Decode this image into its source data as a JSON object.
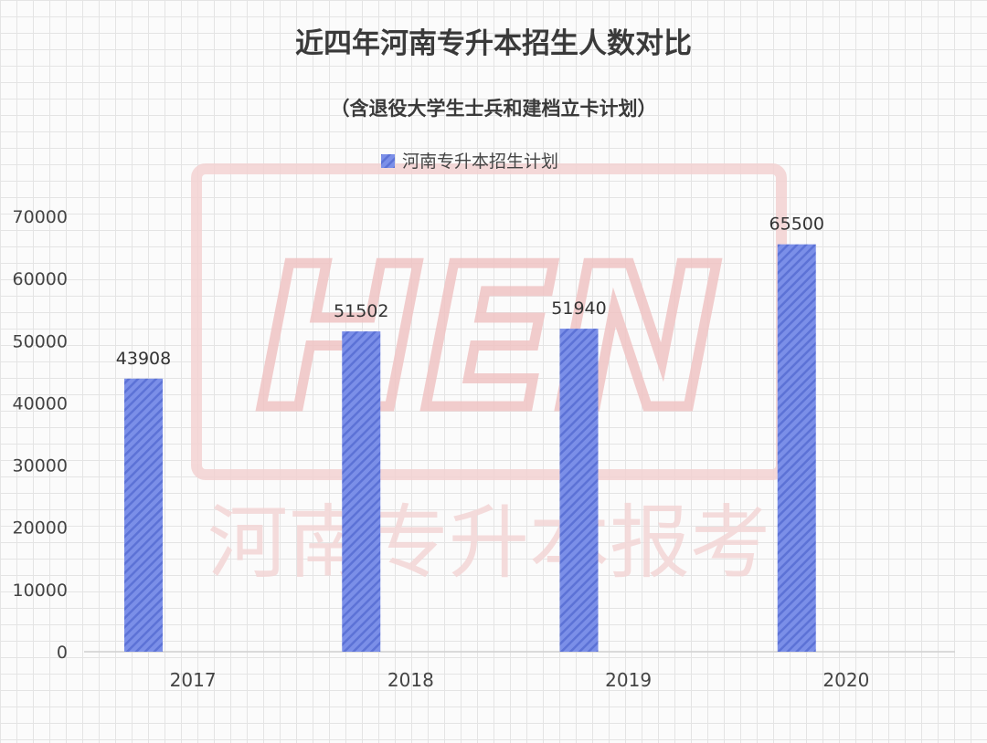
{
  "chart_data": {
    "type": "bar",
    "title": "近四年河南专升本招生人数对比",
    "subtitle": "（含退役大学生士兵和建档立卡计划）",
    "categories": [
      "2017",
      "2018",
      "2019",
      "2020"
    ],
    "series": [
      {
        "name": "河南专升本招生计划",
        "values": [
          43908,
          51502,
          51940,
          65500
        ]
      }
    ],
    "yticks": [
      "0",
      "10000",
      "20000",
      "30000",
      "40000",
      "50000",
      "60000",
      "70000"
    ],
    "ylim": [
      0,
      70000
    ],
    "grid": false,
    "legend": "top-center",
    "data_labels": [
      "43908",
      "51502",
      "51940",
      "65500"
    ],
    "bar_color": "#7b8fe8",
    "bar_stripe_color": "#5c72d6",
    "watermark": {
      "logo": "HEN",
      "text": "河南专升本报考",
      "color": "#f0c8c8"
    }
  }
}
